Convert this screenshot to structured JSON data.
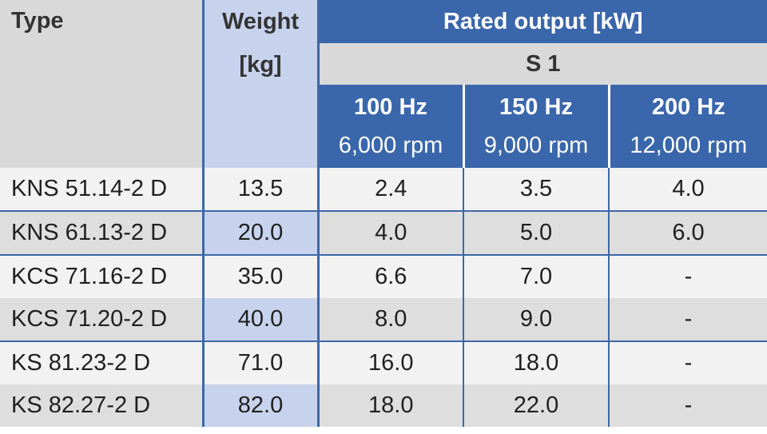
{
  "header": {
    "type": "Type",
    "weight_line1": "Weight",
    "weight_line2": "[kg]",
    "rated_output": "Rated output [kW]",
    "duty": "S 1",
    "freqs": [
      {
        "hz": "100 Hz",
        "rpm": "6,000 rpm"
      },
      {
        "hz": "150 Hz",
        "rpm": "9,000 rpm"
      },
      {
        "hz": "200 Hz",
        "rpm": "12,000 rpm"
      }
    ]
  },
  "rows": [
    {
      "type": "KNS 51.14-2 D",
      "weight": "13.5",
      "p100": "2.4",
      "p150": "3.5",
      "p200": "4.0"
    },
    {
      "type": "KNS 61.13-2 D",
      "weight": "20.0",
      "p100": "4.0",
      "p150": "5.0",
      "p200": "6.0"
    },
    {
      "type": "KCS 71.16-2 D",
      "weight": "35.0",
      "p100": "6.6",
      "p150": "7.0",
      "p200": "-"
    },
    {
      "type": "KCS 71.20-2 D",
      "weight": "40.0",
      "p100": "8.0",
      "p150": "9.0",
      "p200": "-"
    },
    {
      "type": "KS 81.23-2 D",
      "weight": "71.0",
      "p100": "16.0",
      "p150": "18.0",
      "p200": "-"
    },
    {
      "type": "KS 82.27-2 D",
      "weight": "82.0",
      "p100": "18.0",
      "p150": "22.0",
      "p200": "-"
    }
  ],
  "colors": {
    "header_blue": "#3a66ab",
    "weight_col_tint": "#c7d3ec",
    "header_grey": "#d9d9d9",
    "row_light": "#f2f2f2",
    "row_dark": "#dedede"
  }
}
